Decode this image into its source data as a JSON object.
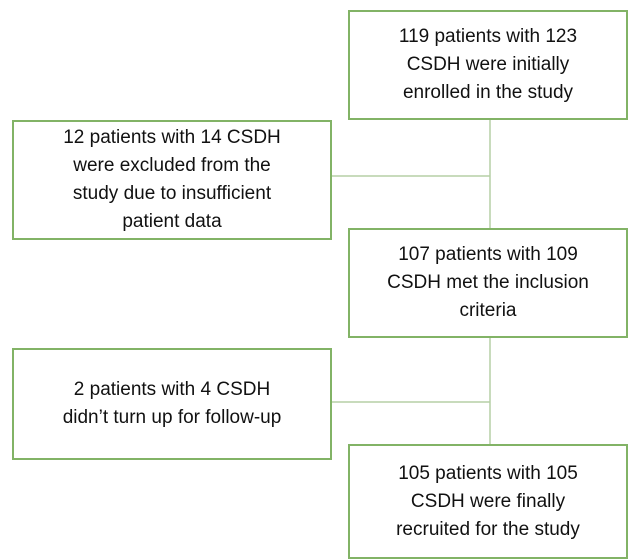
{
  "nodes": [
    {
      "lines": [
        "119 patients with 123",
        "CSDH were initially",
        "enrolled in the study"
      ]
    },
    {
      "lines": [
        "12 patients with 14 CSDH",
        "were excluded from the",
        "study due to insufficient",
        "patient data"
      ]
    },
    {
      "lines": [
        "107 patients with 109",
        "CSDH met the inclusion",
        "criteria"
      ]
    },
    {
      "lines": [
        "2 patients with 4 CSDH",
        "didn’t turn up for follow-up"
      ]
    },
    {
      "lines": [
        "105 patients with 105",
        "CSDH were finally",
        "recruited for the study"
      ]
    }
  ]
}
